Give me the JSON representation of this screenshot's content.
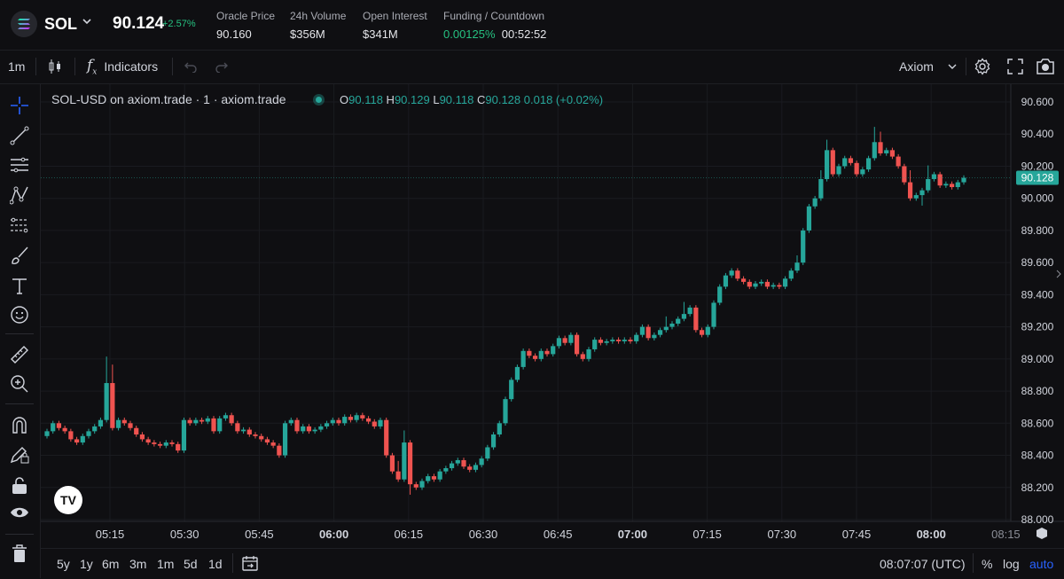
{
  "header": {
    "symbol": "SOL",
    "price": "90.124",
    "change": "+2.57%",
    "stats": [
      {
        "label": "Oracle Price",
        "value": "90.160"
      },
      {
        "label": "24h Volume",
        "value": "$356M"
      },
      {
        "label": "Open Interest",
        "value": "$341M"
      }
    ],
    "funding": {
      "label": "Funding / Countdown",
      "rate": "0.00125%",
      "countdown": "00:52:52"
    }
  },
  "toolbar": {
    "interval": "1m",
    "indicators_label": "Indicators",
    "layout_label": "Axiom"
  },
  "legend": {
    "title": "SOL-USD on axiom.trade · 1 · axiom.trade",
    "o_label": "O",
    "o": "90.118",
    "h_label": "H",
    "h": "90.129",
    "l_label": "L",
    "l": "90.118",
    "c_label": "C",
    "c": "90.128",
    "change": "0.018 (+0.02%)"
  },
  "bottom": {
    "ranges": [
      "5y",
      "1y",
      "6m",
      "3m",
      "1m",
      "5d",
      "1d"
    ],
    "time": "08:07:07 (UTC)",
    "percent": "%",
    "log": "log",
    "auto": "auto"
  },
  "colors": {
    "up": "#26a69a",
    "down": "#ef5350",
    "accent": "#2962ff",
    "price_tag": "#26a69a"
  },
  "chart_data": {
    "type": "candlestick",
    "symbol": "SOL-USD",
    "interval": "1m",
    "x_ticks": [
      "05:15",
      "05:30",
      "05:45",
      "06:00",
      "06:15",
      "06:30",
      "06:45",
      "07:00",
      "07:15",
      "07:30",
      "07:45",
      "08:00",
      "08:15"
    ],
    "x_ticks_bold": [
      "06:00",
      "07:00",
      "08:00"
    ],
    "y_ticks": [
      "90.600",
      "90.400",
      "90.200",
      "90.000",
      "89.800",
      "89.600",
      "89.400",
      "89.200",
      "89.000",
      "88.800",
      "88.600",
      "88.400",
      "88.200",
      "88.000"
    ],
    "ylim": [
      88.0,
      90.6
    ],
    "last_price": "90.128",
    "close": [
      88.55,
      88.6,
      88.57,
      88.55,
      88.5,
      88.48,
      88.52,
      88.55,
      88.58,
      88.62,
      88.85,
      88.57,
      88.62,
      88.6,
      88.57,
      88.53,
      88.5,
      88.48,
      88.47,
      88.46,
      88.48,
      88.47,
      88.43,
      88.62,
      88.6,
      88.62,
      88.61,
      88.63,
      88.55,
      88.63,
      88.65,
      88.6,
      88.55,
      88.56,
      88.53,
      88.52,
      88.5,
      88.48,
      88.46,
      88.4,
      88.6,
      88.62,
      88.55,
      88.58,
      88.55,
      88.56,
      88.58,
      88.6,
      88.62,
      88.6,
      88.64,
      88.62,
      88.65,
      88.63,
      88.61,
      88.58,
      88.62,
      88.4,
      88.3,
      88.25,
      88.48,
      88.22,
      88.2,
      88.24,
      88.27,
      88.25,
      88.3,
      88.32,
      88.35,
      88.37,
      88.33,
      88.31,
      88.34,
      88.38,
      88.45,
      88.53,
      88.6,
      88.75,
      88.87,
      88.95,
      89.05,
      89.02,
      89.0,
      89.05,
      89.03,
      89.08,
      89.13,
      89.1,
      89.15,
      89.03,
      89.0,
      89.06,
      89.12,
      89.1,
      89.11,
      89.12,
      89.11,
      89.12,
      89.11,
      89.15,
      89.2,
      89.13,
      89.15,
      89.18,
      89.2,
      89.22,
      89.25,
      89.28,
      89.32,
      89.18,
      89.15,
      89.2,
      89.35,
      89.45,
      89.52,
      89.55,
      89.5,
      89.48,
      89.45,
      89.47,
      89.48,
      89.45,
      89.46,
      89.45,
      89.5,
      89.55,
      89.6,
      89.8,
      89.95,
      90.0,
      90.12,
      90.3,
      90.15,
      90.2,
      90.25,
      90.22,
      90.15,
      90.18,
      90.25,
      90.35,
      90.28,
      90.3,
      90.26,
      90.2,
      90.1,
      90.0,
      90.02,
      90.05,
      90.12,
      90.15,
      90.08,
      90.09,
      90.07,
      90.1,
      90.128
    ]
  }
}
